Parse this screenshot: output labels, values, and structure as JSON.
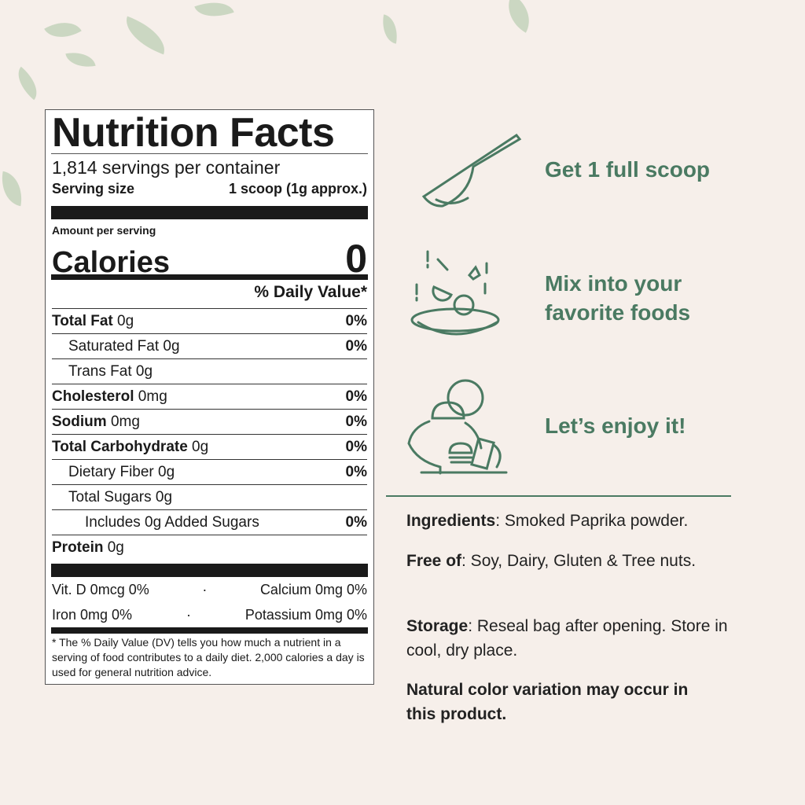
{
  "label": {
    "title": "Nutrition Facts",
    "servings": "1,814 servings per container",
    "serving_size_label": "Serving size",
    "serving_size_value": "1 scoop (1g approx.)",
    "amount_per_serving": "Amount per serving",
    "calories_label": "Calories",
    "calories_value": "0",
    "dv_header": "% Daily Value*",
    "rows": [
      {
        "name": "Total Fat",
        "amount": " 0g",
        "dv": "0%",
        "bold": true,
        "indent": 0
      },
      {
        "name": "Saturated Fat",
        "amount": " 0g",
        "dv": "0%",
        "bold": false,
        "indent": 1
      },
      {
        "name": "Trans Fat",
        "amount": " 0g",
        "dv": "",
        "bold": false,
        "indent": 1
      },
      {
        "name": "Cholesterol",
        "amount": " 0mg",
        "dv": "0%",
        "bold": true,
        "indent": 0
      },
      {
        "name": "Sodium",
        "amount": " 0mg",
        "dv": "0%",
        "bold": true,
        "indent": 0
      },
      {
        "name": "Total Carbohydrate",
        "amount": " 0g",
        "dv": "0%",
        "bold": true,
        "indent": 0
      },
      {
        "name": "Dietary Fiber",
        "amount": " 0g",
        "dv": "0%",
        "bold": false,
        "indent": 1
      },
      {
        "name": "Total Sugars",
        "amount": " 0g",
        "dv": "",
        "bold": false,
        "indent": 1
      },
      {
        "name": "Includes 0g Added Sugars",
        "amount": "",
        "dv": "0%",
        "bold": false,
        "indent": 2
      },
      {
        "name": "Protein",
        "amount": " 0g",
        "dv": "",
        "bold": true,
        "indent": 0
      }
    ],
    "vitamins": [
      [
        "Vit. D 0mcg 0%",
        "Calcium 0mg 0%"
      ],
      [
        "Iron 0mg 0%",
        "Potassium 0mg 0%"
      ]
    ],
    "separator": "·",
    "footnote": "* The % Daily Value (DV) tells you how much a nutrient in a serving of food contributes to a daily diet. 2,000 calories a day is used for general nutrition advice."
  },
  "steps": [
    {
      "icon": "scoop-icon",
      "text": "Get 1 full scoop"
    },
    {
      "icon": "mixing-bowl-icon",
      "text": "Mix into your favorite foods"
    },
    {
      "icon": "person-eating-icon",
      "text": "Let’s enjoy it!"
    }
  ],
  "info": {
    "ingredients_label": "Ingredients",
    "ingredients": ": Smoked Paprika powder.",
    "free_label": "Free of",
    "free": ": Soy, Dairy, Gluten & Tree nuts.",
    "storage_label": "Storage",
    "storage": ": Reseal bag after opening. Store in cool, dry place.",
    "note": "Natural color variation may occur in this product."
  },
  "colors": {
    "background": "#f6efea",
    "accent": "#4a7a62"
  }
}
